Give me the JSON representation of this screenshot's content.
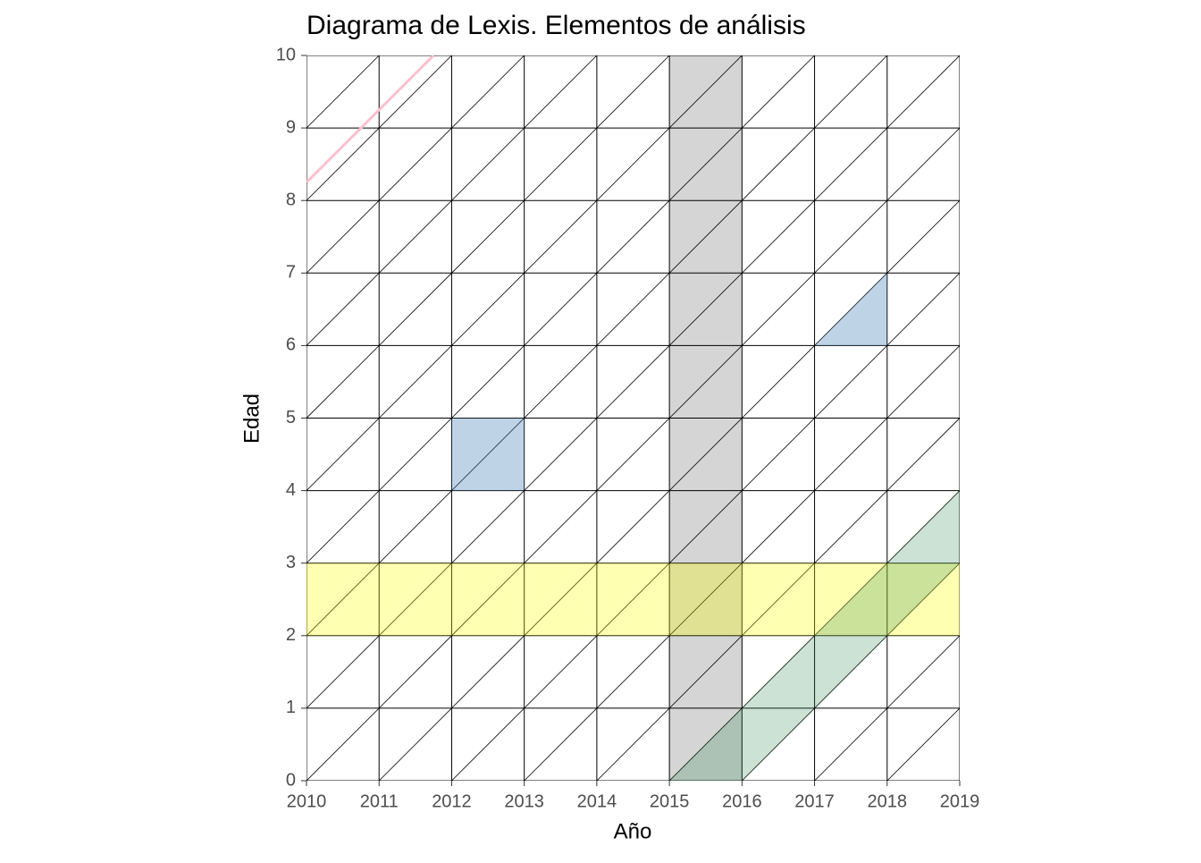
{
  "chart_data": {
    "type": "lexis",
    "title": "Diagrama de Lexis. Elementos de análisis",
    "x_label": "Año",
    "y_label": "Edad",
    "xlim": [
      2010,
      2019
    ],
    "ylim": [
      0,
      10
    ],
    "xticks": [
      2010,
      2011,
      2012,
      2013,
      2014,
      2015,
      2016,
      2017,
      2018,
      2019
    ],
    "yticks": [
      0,
      1,
      2,
      3,
      4,
      5,
      6,
      7,
      8,
      9,
      10
    ],
    "grid": true,
    "grid_color": "#000000",
    "lifelines": true,
    "polygons": [
      {
        "x": [
          2015,
          2016,
          2016,
          2015
        ],
        "y": [
          0,
          0,
          10,
          10
        ],
        "color": "#d3d3d3",
        "opacity": 0.95
      },
      {
        "x": [
          2010,
          2019,
          2019,
          2010
        ],
        "y": [
          2,
          2,
          3,
          3
        ],
        "color": "#ffff00",
        "opacity": 0.3
      },
      {
        "x": [
          2015,
          2016,
          2019,
          2019
        ],
        "y": [
          0,
          0,
          3,
          4
        ],
        "color": "#2e8b57",
        "opacity": 0.25
      },
      {
        "x": [
          2012,
          2013,
          2013,
          2012
        ],
        "y": [
          4,
          4,
          5,
          5
        ],
        "color": "#4682b4",
        "opacity": 0.35
      },
      {
        "x": [
          2017,
          2018,
          2018
        ],
        "y": [
          6,
          6,
          7
        ],
        "color": "#4682b4",
        "opacity": 0.35
      }
    ],
    "lines": [
      {
        "x": [
          2010,
          2011.75
        ],
        "y": [
          8.25,
          10
        ],
        "color": "#ffc0cb",
        "width": 3
      }
    ]
  }
}
